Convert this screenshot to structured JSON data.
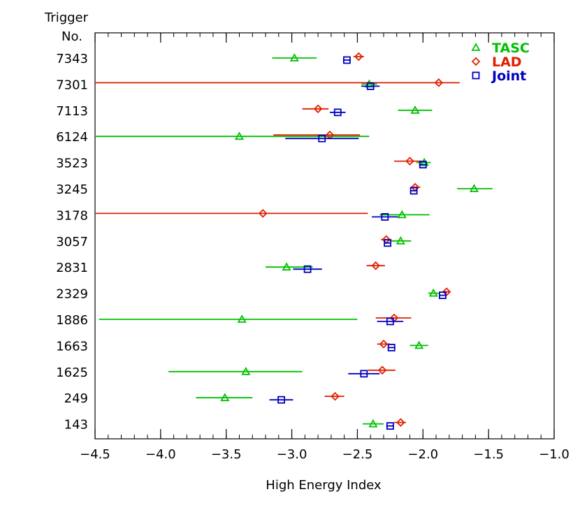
{
  "chart_data": {
    "type": "scatter",
    "title": "",
    "xlabel": "High Energy Index",
    "ylabel": "Trigger\nNo.",
    "xlim": [
      -4.5,
      -1.0
    ],
    "xticks": [
      "-4.5",
      "-4.0",
      "-3.5",
      "-3.0",
      "-2.5",
      "-2.0",
      "-1.5",
      "-1.0"
    ],
    "x_minor_step": 0.1,
    "grid": false,
    "legend_position": "top-right",
    "categories": [
      "7343",
      "7301",
      "7113",
      "6124",
      "3523",
      "3245",
      "3178",
      "3057",
      "2831",
      "2329",
      "1886",
      "1663",
      "1625",
      "249",
      "143"
    ],
    "series": [
      {
        "name": "TASC",
        "color": "#00c000",
        "marker": "triangle",
        "values": [
          -2.98,
          -2.41,
          -2.06,
          -3.4,
          -1.99,
          -1.61,
          -2.16,
          -2.17,
          -3.04,
          -1.92,
          -3.38,
          -2.03,
          -3.35,
          -3.51,
          -2.38
        ],
        "err_low": [
          -3.15,
          -2.47,
          -2.19,
          -4.5,
          -2.05,
          -1.74,
          -2.33,
          -2.25,
          -3.2,
          -1.96,
          -4.47,
          -2.1,
          -3.94,
          -3.73,
          -2.46
        ],
        "err_high": [
          -2.81,
          -2.35,
          -1.93,
          -2.41,
          -1.94,
          -1.47,
          -1.95,
          -2.09,
          -2.84,
          -1.88,
          -2.5,
          -1.96,
          -2.92,
          -3.3,
          -2.3
        ]
      },
      {
        "name": "LAD",
        "color": "#e02000",
        "marker": "diamond",
        "values": [
          -2.49,
          -1.88,
          -2.8,
          -2.71,
          -2.1,
          -2.06,
          -3.22,
          -2.28,
          -2.36,
          -1.82,
          -2.22,
          -2.3,
          -2.31,
          -2.67,
          -2.17
        ],
        "err_low": [
          -2.53,
          -4.5,
          -2.92,
          -3.14,
          -2.22,
          -2.09,
          -4.5,
          -2.32,
          -2.43,
          -1.84,
          -2.36,
          -2.35,
          -2.42,
          -2.75,
          -2.22
        ],
        "err_high": [
          -2.45,
          -1.72,
          -2.72,
          -2.48,
          -2.01,
          -2.02,
          -2.42,
          -2.24,
          -2.29,
          -1.8,
          -2.09,
          -2.25,
          -2.21,
          -2.6,
          -2.13
        ]
      },
      {
        "name": "Joint",
        "color": "#0000c0",
        "marker": "square",
        "values": [
          -2.58,
          -2.4,
          -2.65,
          -2.77,
          -2.0,
          -2.07,
          -2.29,
          -2.27,
          -2.88,
          -1.85,
          -2.25,
          -2.24,
          -2.45,
          -3.08,
          -2.25
        ],
        "err_low": [
          -2.61,
          -2.47,
          -2.71,
          -3.05,
          -2.03,
          -2.09,
          -2.39,
          -2.29,
          -2.99,
          -1.87,
          -2.35,
          -2.27,
          -2.57,
          -3.17,
          -2.28
        ],
        "err_high": [
          -2.55,
          -2.33,
          -2.59,
          -2.49,
          -1.97,
          -2.05,
          -2.19,
          -2.25,
          -2.77,
          -1.83,
          -2.15,
          -2.21,
          -2.33,
          -2.99,
          -2.22
        ]
      }
    ]
  }
}
